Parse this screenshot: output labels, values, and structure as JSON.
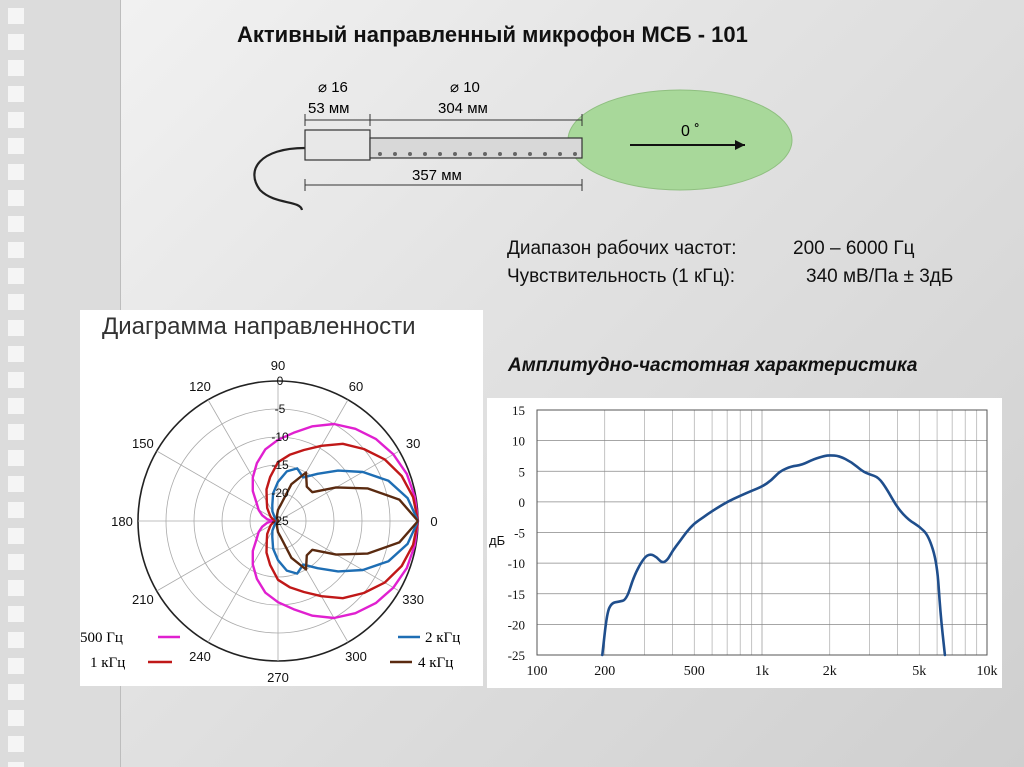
{
  "slide": {
    "title": "Активный направленный микрофон МСБ - 101"
  },
  "mic_drawing": {
    "dia_head": "⌀ 16",
    "len_head": "53 мм",
    "dia_tube": "⌀ 10",
    "len_tube": "304 мм",
    "len_total": "357 мм",
    "angle_label": "0 ˚",
    "lobe_color": "#a8d89a"
  },
  "specs": {
    "freq_label": "Диапазон рабочих частот:",
    "freq_value": "200 – 6000 Гц",
    "sens_label": "Чувствительность (1 кГц):",
    "sens_value": "340 мВ/Па ± 3дБ"
  },
  "chart_data": [
    {
      "type": "polar",
      "title": "Диаграмма направленности",
      "angle_ticks": [
        "0",
        "30",
        "60",
        "90",
        "120",
        "150",
        "180",
        "210",
        "240",
        "270",
        "300",
        "330"
      ],
      "radial_ticks": [
        "0",
        "-5",
        "-10",
        "-15",
        "-20",
        "-25"
      ],
      "rlim": [
        -25,
        0
      ],
      "series": [
        {
          "name": "500 Гц",
          "color": "#e020d0",
          "angles": [
            0,
            10,
            20,
            30,
            40,
            50,
            60,
            70,
            80,
            90,
            100,
            110,
            120,
            130,
            140,
            150,
            160,
            170,
            180
          ],
          "values": [
            0,
            -0.2,
            -0.5,
            -1.2,
            -2.2,
            -3.5,
            -5,
            -7,
            -9,
            -10.5,
            -12,
            -14,
            -16,
            -18,
            -20,
            -21,
            -22,
            -23,
            -24
          ]
        },
        {
          "name": "1 кГц",
          "color": "#c01818",
          "angles": [
            0,
            10,
            20,
            30,
            40,
            50,
            60,
            70,
            80,
            90,
            100,
            110,
            120,
            130,
            140,
            150,
            160,
            170,
            180
          ],
          "values": [
            0,
            -0.5,
            -1.5,
            -3,
            -5,
            -7,
            -9.5,
            -11.5,
            -13,
            -14.5,
            -17,
            -19,
            -21,
            -22,
            -23,
            -23.5,
            -24,
            -24.5,
            -25
          ]
        },
        {
          "name": "2 кГц",
          "color": "#1e6eb4",
          "angles": [
            0,
            10,
            20,
            30,
            40,
            50,
            60,
            70,
            80,
            90,
            100,
            110,
            120,
            130,
            140,
            150,
            160,
            170,
            180
          ],
          "values": [
            0,
            -1.5,
            -4,
            -7.5,
            -11,
            -14,
            -16,
            -15,
            -16,
            -18,
            -20,
            -22,
            -23,
            -24,
            -24.5,
            -25,
            -25,
            -25,
            -25
          ]
        },
        {
          "name": "4 кГц",
          "color": "#5a2a10",
          "angles": [
            0,
            10,
            20,
            30,
            40,
            50,
            60,
            70,
            80,
            90,
            100,
            110,
            120,
            130,
            140,
            150,
            160,
            170,
            180
          ],
          "values": [
            0,
            -3,
            -8,
            -13,
            -17,
            -17,
            -15,
            -18,
            -22,
            -23,
            -24,
            -24.5,
            -25,
            -25,
            -25,
            -25,
            -25,
            -25,
            -25
          ]
        }
      ]
    },
    {
      "type": "line",
      "title": "Амплитудно-частотная характеристика",
      "xlabel": "",
      "ylabel": "дБ",
      "xscale": "log",
      "xlim": [
        100,
        10000
      ],
      "ylim": [
        -25,
        15
      ],
      "x_tick_labels": [
        "100",
        "200",
        "500",
        "1k",
        "2k",
        "5k",
        "10k"
      ],
      "x_tick_values": [
        100,
        200,
        500,
        1000,
        2000,
        5000,
        10000
      ],
      "y_ticks": [
        15,
        10,
        5,
        0,
        -5,
        -10,
        -15,
        -20,
        -25
      ],
      "grid": true,
      "series": [
        {
          "name": "",
          "color": "#1f4e8c",
          "x": [
            195,
            205,
            215,
            230,
            250,
            270,
            300,
            320,
            340,
            360,
            380,
            400,
            430,
            460,
            500,
            550,
            600,
            700,
            800,
            900,
            1000,
            1100,
            1200,
            1350,
            1500,
            1700,
            1900,
            2000,
            2200,
            2500,
            2800,
            3000,
            3300,
            3600,
            4000,
            4500,
            5000,
            5500,
            6000,
            6200,
            6500
          ],
          "y": [
            -25,
            -18,
            -16.5,
            -16.3,
            -16,
            -12,
            -9,
            -8.5,
            -9,
            -10,
            -9.5,
            -8,
            -6.5,
            -5,
            -3.5,
            -2.5,
            -1.5,
            0,
            1,
            1.8,
            2.5,
            3.5,
            5,
            5.8,
            6,
            7,
            7.5,
            7.6,
            7.5,
            6.5,
            5,
            4.5,
            4,
            2,
            -1,
            -3,
            -4,
            -5.5,
            -10,
            -18,
            -25
          ]
        }
      ]
    }
  ],
  "polar_legend": {
    "l500": "500 Гц",
    "l1k": "1 кГц",
    "l2k": "2 кГц",
    "l4k": "4 кГц"
  }
}
